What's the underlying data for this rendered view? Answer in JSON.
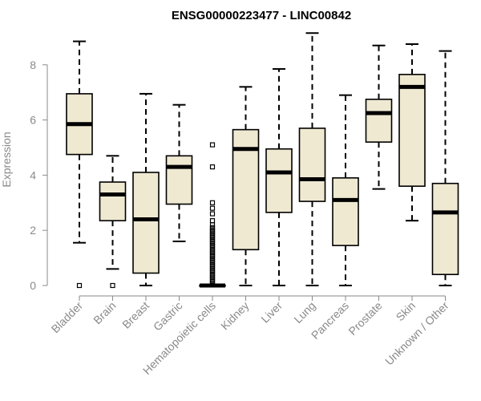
{
  "chart_data": {
    "type": "box",
    "title": "ENSG00000223477 - LINC00842",
    "xlabel": "",
    "ylabel": "Expression",
    "ylim": [
      0,
      9.1
    ],
    "yticks": [
      0,
      2,
      4,
      6,
      8
    ],
    "grid": false,
    "colors": {
      "box_fill": "#efe9d2",
      "box_stroke": "#000000",
      "axis": "#8a8a8a"
    },
    "categories": [
      "Bladder",
      "Brain",
      "Breast",
      "Gastric",
      "Hematopoietic cells",
      "Kidney",
      "Liver",
      "Lung",
      "Pancreas",
      "Prostate",
      "Skin",
      "Unknown / Other"
    ],
    "boxes": [
      {
        "min": 1.55,
        "q1": 4.75,
        "median": 5.85,
        "q3": 6.95,
        "max": 8.85,
        "outliers": [
          0.0
        ]
      },
      {
        "min": 0.6,
        "q1": 2.35,
        "median": 3.3,
        "q3": 3.75,
        "max": 4.7,
        "outliers": [
          0.0
        ]
      },
      {
        "min": 0.0,
        "q1": 0.45,
        "median": 2.4,
        "q3": 4.1,
        "max": 6.95,
        "outliers": []
      },
      {
        "min": 1.6,
        "q1": 2.95,
        "median": 4.3,
        "q3": 4.7,
        "max": 6.55,
        "outliers": []
      },
      {
        "min": 0.0,
        "q1": 0.0,
        "median": 0.0,
        "q3": 0.0,
        "max": 0.0,
        "outliers": [
          0.05,
          0.1,
          0.15,
          0.2,
          0.25,
          0.3,
          0.35,
          0.4,
          0.45,
          0.5,
          0.55,
          0.6,
          0.65,
          0.7,
          0.75,
          0.8,
          0.85,
          0.9,
          0.95,
          1.0,
          1.05,
          1.1,
          1.15,
          1.2,
          1.25,
          1.3,
          1.35,
          1.4,
          1.45,
          1.5,
          1.55,
          1.6,
          1.65,
          1.7,
          1.75,
          1.8,
          1.85,
          1.9,
          1.95,
          2.0,
          2.05,
          2.1,
          2.2,
          2.35,
          2.6,
          2.8,
          3.0,
          4.3,
          5.1
        ]
      },
      {
        "min": 0.0,
        "q1": 1.3,
        "median": 4.95,
        "q3": 5.65,
        "max": 7.2,
        "outliers": []
      },
      {
        "min": 0.0,
        "q1": 2.65,
        "median": 4.1,
        "q3": 4.95,
        "max": 7.85,
        "outliers": []
      },
      {
        "min": 0.0,
        "q1": 3.05,
        "median": 3.85,
        "q3": 5.7,
        "max": 9.15,
        "outliers": []
      },
      {
        "min": 0.0,
        "q1": 1.45,
        "median": 3.1,
        "q3": 3.9,
        "max": 6.9,
        "outliers": []
      },
      {
        "min": 3.5,
        "q1": 5.2,
        "median": 6.25,
        "q3": 6.75,
        "max": 8.7,
        "outliers": []
      },
      {
        "min": 2.35,
        "q1": 3.6,
        "median": 7.2,
        "q3": 7.65,
        "max": 8.75,
        "outliers": []
      },
      {
        "min": 0.0,
        "q1": 0.4,
        "median": 2.65,
        "q3": 3.7,
        "max": 8.5,
        "outliers": []
      }
    ]
  }
}
